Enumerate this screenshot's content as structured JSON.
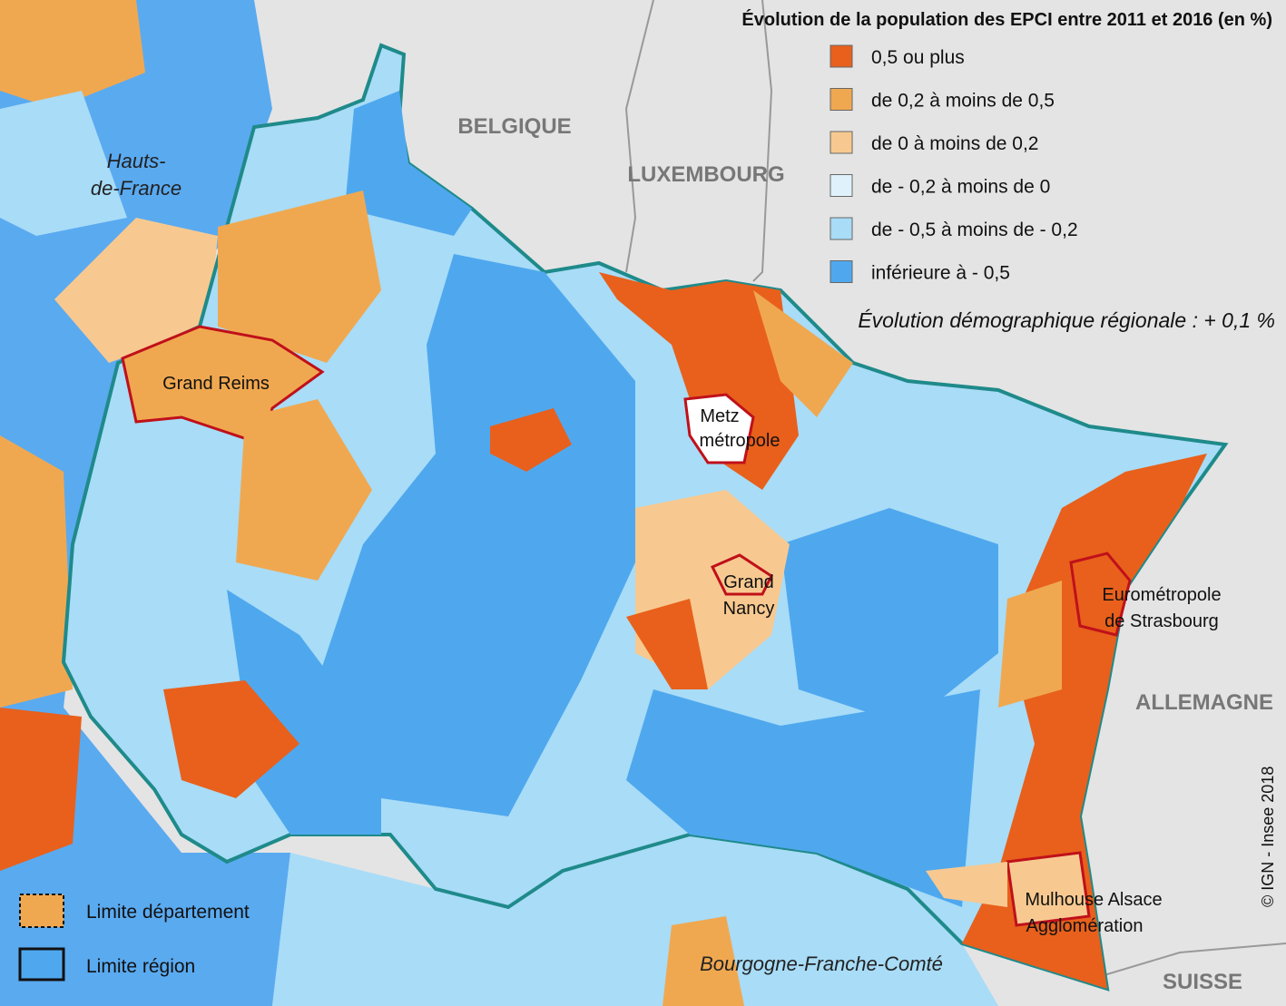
{
  "legend": {
    "title": "Évolution  de la population des EPCI entre 2011 et 2016 (en %)",
    "items": [
      {
        "label": "0,5 ou plus",
        "color": "#e8601c"
      },
      {
        "label": "de 0,2 à moins de 0,5",
        "color": "#f0a850"
      },
      {
        "label": "de 0 à moins de 0,2",
        "color": "#f7c990"
      },
      {
        "label": "de - 0,2 à moins de 0",
        "color": "#dff2fc"
      },
      {
        "label": "de - 0,5 à moins de - 0,2",
        "color": "#a8dcf7"
      },
      {
        "label": "inférieure à - 0,5",
        "color": "#4fa8ee"
      }
    ],
    "note": "Évolution démographique régionale : + 0,1 %"
  },
  "countries": [
    "BELGIQUE",
    "LUXEMBOURG",
    "ALLEMAGNE",
    "SUISSE"
  ],
  "regions": [
    {
      "lines": [
        "Hauts-",
        "de-France"
      ]
    },
    {
      "lines": [
        "Bourgogne-Franche-Comté"
      ]
    }
  ],
  "places": [
    {
      "lines": [
        "Grand Reims"
      ]
    },
    {
      "lines": [
        "Metz",
        "métropole"
      ]
    },
    {
      "lines": [
        "Grand",
        "Nancy"
      ]
    },
    {
      "lines": [
        "Eurométropole",
        "de Strasbourg"
      ]
    },
    {
      "lines": [
        "Mulhouse Alsace",
        "Agglomération"
      ]
    }
  ],
  "credit": "© IGN - Insee 2018",
  "boundary_legend": [
    "Limite département",
    "Limite région"
  ]
}
